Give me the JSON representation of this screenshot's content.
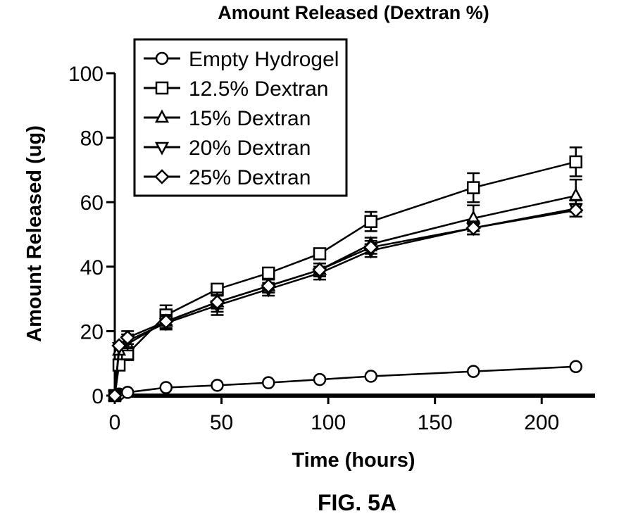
{
  "chart_data": {
    "type": "line",
    "title": "Amount Released (Dextran %)",
    "xlabel": "Time (hours)",
    "ylabel": "Amount Released (ug)",
    "xlim": [
      0,
      225
    ],
    "ylim": [
      0,
      100
    ],
    "xticks": [
      0,
      50,
      100,
      150,
      200
    ],
    "yticks": [
      0,
      20,
      40,
      60,
      80,
      100
    ],
    "grid": false,
    "legend_position": "top-left",
    "x": [
      0,
      2,
      6,
      24,
      48,
      72,
      96,
      120,
      168,
      216
    ],
    "series": [
      {
        "name": "Empty Hydrogel",
        "marker": "circle",
        "values": [
          0,
          0.5,
          1,
          2.5,
          3.2,
          4,
          5,
          6,
          7.5,
          9
        ],
        "errors": [
          0,
          0,
          0,
          0,
          0,
          0,
          0,
          0,
          0,
          0
        ]
      },
      {
        "name": "12.5% Dextran",
        "marker": "square",
        "values": [
          0,
          9.5,
          13,
          25,
          33,
          38,
          44,
          54,
          64.5,
          72.5
        ],
        "errors": [
          0,
          0,
          2,
          3,
          0,
          0,
          0,
          3,
          4.5,
          4.5
        ]
      },
      {
        "name": "15% Dextran",
        "marker": "triangle-up",
        "values": [
          0,
          14,
          16,
          23,
          29,
          34,
          39,
          47,
          55,
          62
        ],
        "errors": [
          0,
          0,
          2,
          2,
          3,
          2,
          2,
          2,
          4,
          5
        ]
      },
      {
        "name": "20% Dextran",
        "marker": "triangle-down",
        "values": [
          0,
          15,
          17,
          22.5,
          28,
          33,
          38,
          45,
          52,
          58
        ],
        "errors": [
          0,
          0,
          2,
          2,
          3,
          2,
          2,
          2,
          2,
          2.5
        ]
      },
      {
        "name": "25% Dextran",
        "marker": "diamond",
        "values": [
          0,
          15.5,
          18,
          23,
          29,
          34,
          39,
          46,
          52,
          57.5
        ],
        "errors": [
          0,
          0,
          2,
          2,
          2,
          2,
          2,
          2,
          2,
          2
        ]
      }
    ]
  },
  "figure_label": "FIG. 5A"
}
